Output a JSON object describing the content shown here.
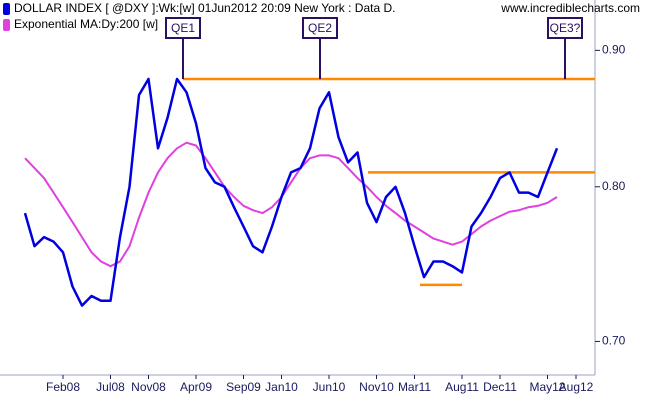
{
  "chart_data": {
    "type": "line",
    "watermark": "www.incrediblecharts.com",
    "categories": [
      null,
      null,
      null,
      null,
      "Feb08",
      null,
      null,
      null,
      null,
      "Jul08",
      null,
      null,
      null,
      "Nov08",
      null,
      null,
      null,
      null,
      "Apr09",
      null,
      null,
      null,
      null,
      "Sep09",
      null,
      null,
      null,
      "Jan10",
      null,
      null,
      null,
      null,
      "Jun10",
      null,
      null,
      null,
      null,
      "Nov10",
      null,
      null,
      null,
      "Mar11",
      null,
      null,
      null,
      null,
      "Aug11",
      null,
      null,
      null,
      "Dec11",
      null,
      null,
      null,
      null,
      "May12",
      null,
      null,
      "Aug12"
    ],
    "series": [
      {
        "name": "DOLLAR INDEX [ @DXY ]:Wk:[w]  01Jun2012 20:09 New York : Data D.",
        "color": "#0000e0",
        "values": [
          0.782,
          0.76,
          0.766,
          0.763,
          0.756,
          0.734,
          0.722,
          0.728,
          0.725,
          0.725,
          0.766,
          0.8,
          0.866,
          0.878,
          0.827,
          0.849,
          0.878,
          0.868,
          0.845,
          0.813,
          0.803,
          0.8,
          0.786,
          0.773,
          0.76,
          0.756,
          0.773,
          0.793,
          0.81,
          0.813,
          0.827,
          0.856,
          0.868,
          0.835,
          0.817,
          0.824,
          0.789,
          0.776,
          0.793,
          0.8,
          0.782,
          0.76,
          0.74,
          0.75,
          0.75,
          0.747,
          0.743,
          0.773,
          0.782,
          0.793,
          0.806,
          0.81,
          0.796,
          0.796,
          0.793,
          0.81,
          0.827,
          null,
          null
        ]
      },
      {
        "name": "Exponential MA:Dy:200 [w]",
        "color": "#e040e0",
        "values": [
          0.82,
          0.813,
          0.806,
          0.796,
          0.786,
          0.776,
          0.766,
          0.756,
          0.75,
          0.747,
          0.75,
          0.76,
          0.779,
          0.796,
          0.81,
          0.82,
          0.827,
          0.831,
          0.829,
          0.82,
          0.81,
          0.8,
          0.793,
          0.787,
          0.784,
          0.782,
          0.786,
          0.793,
          0.803,
          0.813,
          0.82,
          0.822,
          0.822,
          0.82,
          0.813,
          0.806,
          0.8,
          0.793,
          0.787,
          0.782,
          0.777,
          0.773,
          0.769,
          0.765,
          0.763,
          0.761,
          0.763,
          0.768,
          0.773,
          0.777,
          0.78,
          0.783,
          0.784,
          0.786,
          0.787,
          0.789,
          0.793,
          null,
          null
        ]
      }
    ],
    "reference_lines": {
      "color": "#ff8800",
      "values": [
        0.878,
        0.81,
        0.735
      ]
    },
    "annotations": [
      "QE1",
      "QE2",
      "QE3?"
    ],
    "log_scale": true,
    "ylim": [
      0.68,
      0.94
    ],
    "yticks": [
      {
        "value": 0.7,
        "label": "0.70"
      },
      {
        "value": 0.8,
        "label": "0.80"
      },
      {
        "value": 0.9,
        "label": "0.90"
      }
    ]
  }
}
